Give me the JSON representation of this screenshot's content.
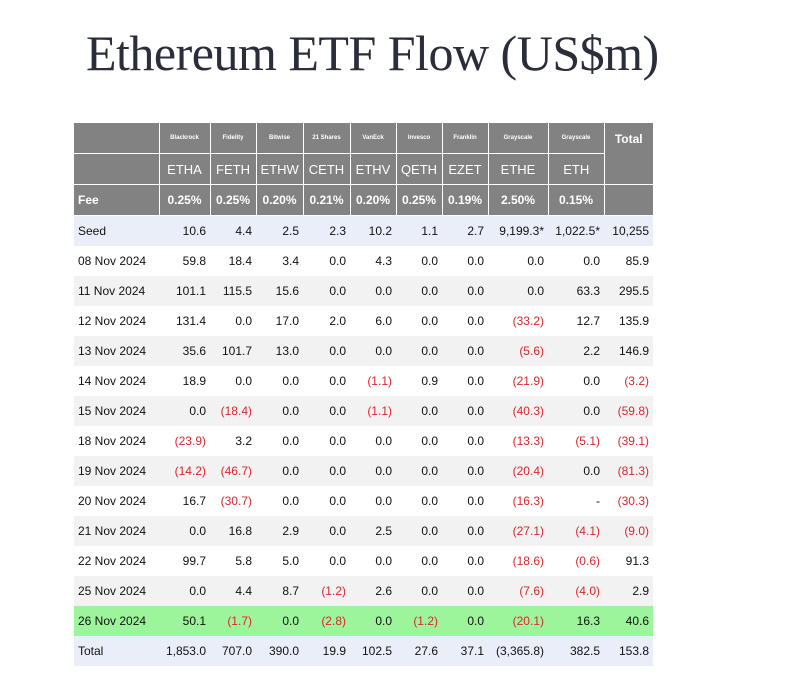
{
  "title": "Ethereum ETF Flow (US$m)",
  "table": {
    "issuers": [
      "Blackrock",
      "Fidelity",
      "Bitwise",
      "21 Shares",
      "VanEck",
      "Invesco",
      "Franklin",
      "Grayscale",
      "Grayscale"
    ],
    "total_label": "Total",
    "tickers": [
      "ETHA",
      "FETH",
      "ETHW",
      "CETH",
      "ETHV",
      "QETH",
      "EZET",
      "ETHE",
      "ETH"
    ],
    "fee_label": "Fee",
    "fees": [
      "0.25%",
      "0.25%",
      "0.20%",
      "0.21%",
      "0.20%",
      "0.25%",
      "0.19%",
      "2.50%",
      "0.15%"
    ],
    "rows": [
      {
        "label": "Seed",
        "values": [
          "10.6",
          "4.4",
          "2.5",
          "2.3",
          "10.2",
          "1.1",
          "2.7",
          "9,199.3*",
          "1,022.5*",
          "10,255"
        ]
      },
      {
        "label": "08 Nov 2024",
        "values": [
          "59.8",
          "18.4",
          "3.4",
          "0.0",
          "4.3",
          "0.0",
          "0.0",
          "0.0",
          "0.0",
          "85.9"
        ]
      },
      {
        "label": "11 Nov 2024",
        "values": [
          "101.1",
          "115.5",
          "15.6",
          "0.0",
          "0.0",
          "0.0",
          "0.0",
          "0.0",
          "63.3",
          "295.5"
        ]
      },
      {
        "label": "12 Nov 2024",
        "values": [
          "131.4",
          "0.0",
          "17.0",
          "2.0",
          "6.0",
          "0.0",
          "0.0",
          "(33.2)",
          "12.7",
          "135.9"
        ]
      },
      {
        "label": "13 Nov 2024",
        "values": [
          "35.6",
          "101.7",
          "13.0",
          "0.0",
          "0.0",
          "0.0",
          "0.0",
          "(5.6)",
          "2.2",
          "146.9"
        ]
      },
      {
        "label": "14 Nov 2024",
        "values": [
          "18.9",
          "0.0",
          "0.0",
          "0.0",
          "(1.1)",
          "0.9",
          "0.0",
          "(21.9)",
          "0.0",
          "(3.2)"
        ]
      },
      {
        "label": "15 Nov 2024",
        "values": [
          "0.0",
          "(18.4)",
          "0.0",
          "0.0",
          "(1.1)",
          "0.0",
          "0.0",
          "(40.3)",
          "0.0",
          "(59.8)"
        ]
      },
      {
        "label": "18 Nov 2024",
        "values": [
          "(23.9)",
          "3.2",
          "0.0",
          "0.0",
          "0.0",
          "0.0",
          "0.0",
          "(13.3)",
          "(5.1)",
          "(39.1)"
        ]
      },
      {
        "label": "19 Nov 2024",
        "values": [
          "(14.2)",
          "(46.7)",
          "0.0",
          "0.0",
          "0.0",
          "0.0",
          "0.0",
          "(20.4)",
          "0.0",
          "(81.3)"
        ]
      },
      {
        "label": "20 Nov 2024",
        "values": [
          "16.7",
          "(30.7)",
          "0.0",
          "0.0",
          "0.0",
          "0.0",
          "0.0",
          "(16.3)",
          "-",
          "(30.3)"
        ]
      },
      {
        "label": "21 Nov 2024",
        "values": [
          "0.0",
          "16.8",
          "2.9",
          "0.0",
          "2.5",
          "0.0",
          "0.0",
          "(27.1)",
          "(4.1)",
          "(9.0)"
        ]
      },
      {
        "label": "22 Nov 2024",
        "values": [
          "99.7",
          "5.8",
          "5.0",
          "0.0",
          "0.0",
          "0.0",
          "0.0",
          "(18.6)",
          "(0.6)",
          "91.3"
        ]
      },
      {
        "label": "25 Nov 2024",
        "values": [
          "0.0",
          "4.4",
          "8.7",
          "(1.2)",
          "2.6",
          "0.0",
          "0.0",
          "(7.6)",
          "(4.0)",
          "2.9"
        ]
      },
      {
        "label": "26 Nov 2024",
        "values": [
          "50.1",
          "(1.7)",
          "0.0",
          "(2.8)",
          "0.0",
          "(1.2)",
          "0.0",
          "(20.1)",
          "16.3",
          "40.6"
        ]
      },
      {
        "label": "Total",
        "values": [
          "1,853.0",
          "707.0",
          "390.0",
          "19.9",
          "102.5",
          "27.6",
          "37.1",
          "(3,365.8)",
          "382.5",
          "153.8"
        ]
      }
    ]
  },
  "colors": {
    "header_bg": "#828282",
    "negative": "#d9262b",
    "highlight_row": "#9df59b",
    "row_alt": "#f2f2f2",
    "row_blue": "#e9eef8"
  }
}
